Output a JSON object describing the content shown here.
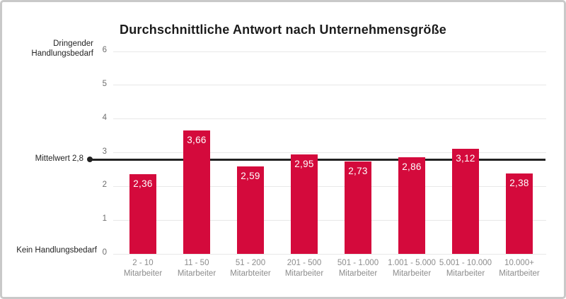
{
  "frame": {
    "border_color": "#c9c9c9",
    "background_color": "#ffffff"
  },
  "chart_data": {
    "type": "bar",
    "title": "Durchschnittliche Antwort nach Unternehmensgröße",
    "categories": [
      "2 - 10 Mitarbeiter",
      "11 - 50 Mitarbeiter",
      "51 - 200 Mitarbteiter",
      "201 - 500 Mitarbeiter",
      "501 - 1.000 Mitarbeiter",
      "1.001 - 5.000 Mitarbeiter",
      "5.001 - 10.000 Mitarbeiter",
      "10.000+ Mitartbeiter"
    ],
    "category_lines": [
      [
        "2 - 10",
        "Mitarbeiter"
      ],
      [
        "11 - 50",
        "Mitarbeiter"
      ],
      [
        "51 - 200",
        "Mitarbteiter"
      ],
      [
        "201 - 500",
        "Mitarbeiter"
      ],
      [
        "501 - 1.000",
        "Mitarbeiter"
      ],
      [
        "1.001 - 5.000",
        "Mitarbeiter"
      ],
      [
        "5.001 - 10.000",
        "Mitarbeiter"
      ],
      [
        "10.000+",
        "Mitartbeiter"
      ]
    ],
    "values": [
      2.36,
      3.66,
      2.59,
      2.95,
      2.73,
      2.86,
      3.12,
      2.38
    ],
    "value_labels": [
      "2,36",
      "3,66",
      "2,59",
      "2,95",
      "2,73",
      "2,86",
      "3,12",
      "2,38"
    ],
    "ylim": [
      0,
      6
    ],
    "y_ticks": [
      0,
      1,
      2,
      3,
      4,
      5,
      6
    ],
    "y_axis_top_label": "Dringender Handlungsbedarf",
    "y_axis_top_label_lines": [
      "Dringender",
      "Handlungsbedarf"
    ],
    "y_axis_bottom_label": "Kein Handlungsbedarf",
    "reference_line": {
      "label": "Mittelwert 2,8",
      "value": 2.8
    },
    "grid": "horizontal",
    "legend": "none",
    "bar_color": "#d40a3c",
    "bar_value_text_color": "#ffffff",
    "reference_line_color": "#222222",
    "gridline_color": "#e8e8e8"
  }
}
